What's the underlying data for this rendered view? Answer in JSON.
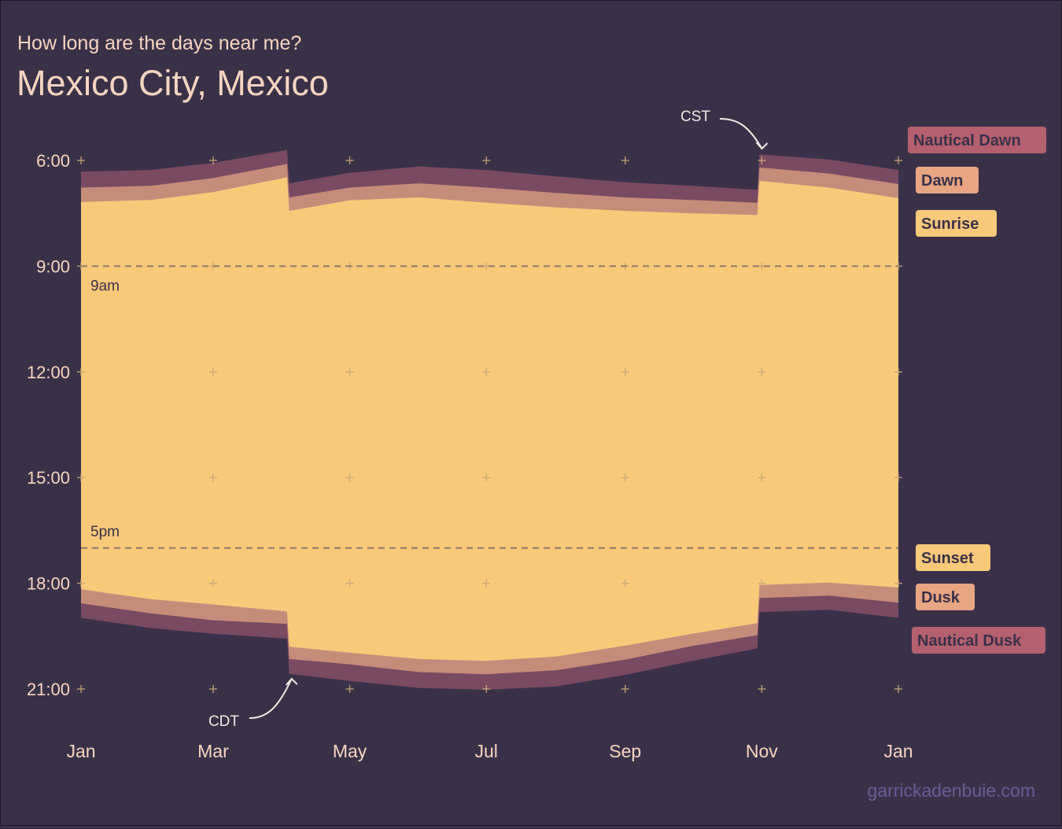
{
  "header": {
    "subtitle": "How long are the days near me?",
    "title": "Mexico City, Mexico"
  },
  "credit": "garrickadenbuie.com",
  "colors": {
    "background": "#3a3149",
    "text": "#f6d4c0",
    "daylight": "#f9c97a",
    "civil_twilight": "#c68c7a",
    "nautical_twilight": "#7a4a62",
    "refline": "#8e7a6d",
    "grid_plus": "#c9a777",
    "credit": "#6a5d93"
  },
  "chart_data": {
    "type": "area",
    "title": "Mexico City, Mexico",
    "subtitle": "How long are the days near me?",
    "x_axis": {
      "ticks": [
        "Jan",
        "Mar",
        "May",
        "Jul",
        "Sep",
        "Nov",
        "Jan"
      ],
      "range": [
        "2021-01-01",
        "2022-01-01"
      ]
    },
    "y_axis": {
      "ticks": [
        "6:00",
        "9:00",
        "12:00",
        "15:00",
        "18:00",
        "21:00"
      ],
      "range_hours": [
        6,
        21
      ],
      "reversed": true
    },
    "reference_lines": [
      {
        "label": "9am",
        "hour": 9
      },
      {
        "label": "5pm",
        "hour": 17
      }
    ],
    "annotations": [
      {
        "label": "CDT",
        "date": "2021-04-04"
      },
      {
        "label": "CST",
        "date": "2021-10-31"
      }
    ],
    "legend": [
      "Nautical Dawn",
      "Dawn",
      "Sunrise",
      "Sunset",
      "Dusk",
      "Nautical Dusk"
    ],
    "legend_placement": "right",
    "x": [
      "2021-01-01",
      "2021-02-01",
      "2021-03-01",
      "2021-04-03",
      "2021-04-04",
      "2021-05-01",
      "2021-06-01",
      "2021-07-01",
      "2021-08-01",
      "2021-09-01",
      "2021-10-01",
      "2021-10-30",
      "2021-10-31",
      "2021-12-01",
      "2022-01-01"
    ],
    "series": [
      {
        "name": "Nautical Dawn",
        "values": [
          6.32,
          6.27,
          6.07,
          5.7,
          6.65,
          6.35,
          6.17,
          6.27,
          6.45,
          6.62,
          6.72,
          6.83,
          5.83,
          5.97,
          6.27
        ]
      },
      {
        "name": "Dawn",
        "values": [
          6.77,
          6.72,
          6.5,
          6.1,
          7.05,
          6.77,
          6.65,
          6.77,
          6.92,
          7.05,
          7.12,
          7.2,
          6.2,
          6.37,
          6.67
        ]
      },
      {
        "name": "Sunrise",
        "values": [
          7.18,
          7.12,
          6.9,
          6.48,
          7.43,
          7.13,
          7.05,
          7.2,
          7.33,
          7.43,
          7.5,
          7.55,
          6.58,
          6.77,
          7.07
        ]
      },
      {
        "name": "Sunset",
        "values": [
          18.17,
          18.45,
          18.6,
          18.8,
          19.8,
          19.97,
          20.15,
          20.2,
          20.08,
          19.77,
          19.43,
          19.13,
          18.05,
          17.98,
          18.12
        ]
      },
      {
        "name": "Dusk",
        "values": [
          18.57,
          18.85,
          19.05,
          19.15,
          20.15,
          20.3,
          20.52,
          20.58,
          20.47,
          20.17,
          19.78,
          19.47,
          18.42,
          18.35,
          18.55
        ]
      },
      {
        "name": "Nautical Dusk",
        "values": [
          18.98,
          19.27,
          19.43,
          19.57,
          20.57,
          20.77,
          20.97,
          21.02,
          20.93,
          20.6,
          20.2,
          19.85,
          18.82,
          18.75,
          18.98
        ]
      }
    ]
  }
}
